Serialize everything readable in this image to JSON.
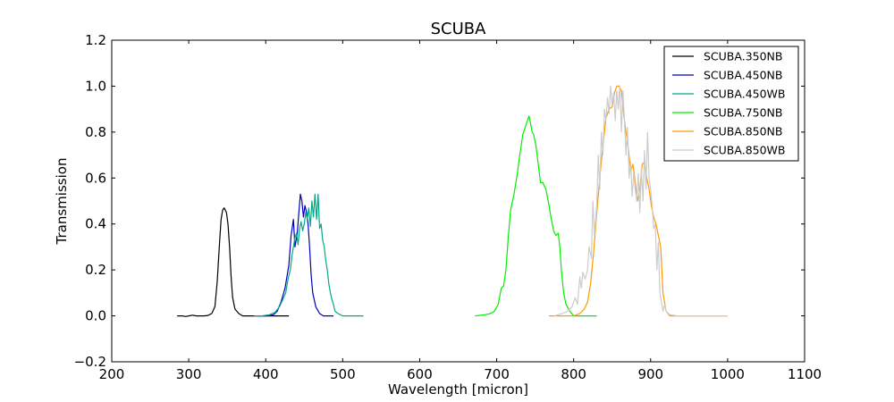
{
  "chart_data": {
    "type": "line",
    "title": "SCUBA",
    "xlabel": "Wavelength [micron]",
    "ylabel": "Transmission",
    "xlim": [
      200,
      1100
    ],
    "ylim": [
      -0.2,
      1.2
    ],
    "x_ticks": [
      200,
      300,
      400,
      500,
      600,
      700,
      800,
      900,
      1000,
      1100
    ],
    "y_ticks": [
      -0.2,
      0.0,
      0.2,
      0.4,
      0.6,
      0.8,
      1.0,
      1.2
    ],
    "x_tick_labels": [
      "200",
      "300",
      "400",
      "500",
      "600",
      "700",
      "800",
      "900",
      "1000",
      "1100"
    ],
    "y_tick_labels": [
      "−0.2",
      "0.0",
      "0.2",
      "0.4",
      "0.6",
      "0.8",
      "1.0",
      "1.2"
    ],
    "grid": false,
    "legend_position": "top-right",
    "series": [
      {
        "name": "SCUBA.350NB",
        "color": "#000000",
        "points": [
          [
            285,
            0.0
          ],
          [
            292,
            0.0
          ],
          [
            296,
            -0.003
          ],
          [
            300,
            0.0
          ],
          [
            305,
            0.003
          ],
          [
            310,
            0.0
          ],
          [
            315,
            0.0
          ],
          [
            320,
            0.0
          ],
          [
            325,
            0.002
          ],
          [
            330,
            0.01
          ],
          [
            334,
            0.04
          ],
          [
            337,
            0.15
          ],
          [
            340,
            0.32
          ],
          [
            342,
            0.42
          ],
          [
            344,
            0.46
          ],
          [
            346,
            0.47
          ],
          [
            349,
            0.45
          ],
          [
            351,
            0.4
          ],
          [
            353,
            0.3
          ],
          [
            355,
            0.17
          ],
          [
            357,
            0.08
          ],
          [
            360,
            0.03
          ],
          [
            365,
            0.01
          ],
          [
            370,
            0.0
          ],
          [
            380,
            0.0
          ],
          [
            400,
            0.0
          ],
          [
            420,
            0.0
          ],
          [
            430,
            0.0
          ]
        ]
      },
      {
        "name": "SCUBA.450NB",
        "color": "#0000bb",
        "points": [
          [
            388,
            0.0
          ],
          [
            400,
            0.0
          ],
          [
            410,
            0.005
          ],
          [
            415,
            0.02
          ],
          [
            420,
            0.06
          ],
          [
            425,
            0.12
          ],
          [
            430,
            0.22
          ],
          [
            433,
            0.35
          ],
          [
            436,
            0.42
          ],
          [
            438,
            0.3
          ],
          [
            441,
            0.36
          ],
          [
            443,
            0.45
          ],
          [
            445,
            0.53
          ],
          [
            447,
            0.5
          ],
          [
            449,
            0.43
          ],
          [
            451,
            0.48
          ],
          [
            453,
            0.45
          ],
          [
            455,
            0.4
          ],
          [
            457,
            0.3
          ],
          [
            459,
            0.18
          ],
          [
            461,
            0.1
          ],
          [
            465,
            0.04
          ],
          [
            470,
            0.01
          ],
          [
            475,
            0.0
          ],
          [
            488,
            0.0
          ]
        ]
      },
      {
        "name": "SCUBA.450WB",
        "color": "#00aa88",
        "points": [
          [
            385,
            0.0
          ],
          [
            395,
            0.0
          ],
          [
            405,
            0.005
          ],
          [
            412,
            0.015
          ],
          [
            418,
            0.04
          ],
          [
            422,
            0.07
          ],
          [
            426,
            0.1
          ],
          [
            429,
            0.16
          ],
          [
            432,
            0.2
          ],
          [
            434,
            0.26
          ],
          [
            436,
            0.3
          ],
          [
            438,
            0.34
          ],
          [
            440,
            0.36
          ],
          [
            442,
            0.31
          ],
          [
            444,
            0.38
          ],
          [
            446,
            0.41
          ],
          [
            448,
            0.37
          ],
          [
            450,
            0.4
          ],
          [
            452,
            0.45
          ],
          [
            454,
            0.42
          ],
          [
            456,
            0.47
          ],
          [
            458,
            0.39
          ],
          [
            460,
            0.5
          ],
          [
            462,
            0.43
          ],
          [
            464,
            0.53
          ],
          [
            466,
            0.42
          ],
          [
            468,
            0.53
          ],
          [
            470,
            0.38
          ],
          [
            472,
            0.4
          ],
          [
            474,
            0.33
          ],
          [
            476,
            0.3
          ],
          [
            478,
            0.24
          ],
          [
            480,
            0.2
          ],
          [
            482,
            0.14
          ],
          [
            484,
            0.1
          ],
          [
            486,
            0.07
          ],
          [
            488,
            0.05
          ],
          [
            490,
            0.02
          ],
          [
            494,
            0.01
          ],
          [
            500,
            0.0
          ],
          [
            515,
            0.0
          ],
          [
            527,
            0.0
          ]
        ]
      },
      {
        "name": "SCUBA.750NB",
        "color": "#00ee00",
        "points": [
          [
            672,
            0.0
          ],
          [
            685,
            0.005
          ],
          [
            692,
            0.01
          ],
          [
            697,
            0.02
          ],
          [
            702,
            0.05
          ],
          [
            706,
            0.12
          ],
          [
            709,
            0.13
          ],
          [
            712,
            0.2
          ],
          [
            715,
            0.34
          ],
          [
            718,
            0.46
          ],
          [
            722,
            0.52
          ],
          [
            726,
            0.6
          ],
          [
            730,
            0.7
          ],
          [
            734,
            0.79
          ],
          [
            738,
            0.83
          ],
          [
            742,
            0.87
          ],
          [
            744,
            0.84
          ],
          [
            746,
            0.8
          ],
          [
            748,
            0.79
          ],
          [
            751,
            0.74
          ],
          [
            754,
            0.66
          ],
          [
            757,
            0.58
          ],
          [
            760,
            0.58
          ],
          [
            764,
            0.55
          ],
          [
            768,
            0.48
          ],
          [
            771,
            0.42
          ],
          [
            774,
            0.37
          ],
          [
            777,
            0.35
          ],
          [
            780,
            0.36
          ],
          [
            782,
            0.3
          ],
          [
            784,
            0.2
          ],
          [
            787,
            0.1
          ],
          [
            790,
            0.05
          ],
          [
            795,
            0.02
          ],
          [
            800,
            0.0
          ],
          [
            815,
            0.0
          ],
          [
            830,
            0.0
          ]
        ]
      },
      {
        "name": "SCUBA.850NB",
        "color": "#ff9900",
        "points": [
          [
            768,
            0.0
          ],
          [
            790,
            0.0
          ],
          [
            800,
            0.0
          ],
          [
            808,
            0.01
          ],
          [
            814,
            0.03
          ],
          [
            818,
            0.06
          ],
          [
            822,
            0.14
          ],
          [
            826,
            0.28
          ],
          [
            830,
            0.45
          ],
          [
            834,
            0.6
          ],
          [
            838,
            0.74
          ],
          [
            842,
            0.86
          ],
          [
            846,
            0.9
          ],
          [
            850,
            0.91
          ],
          [
            853,
            0.97
          ],
          [
            856,
            1.0
          ],
          [
            859,
            1.0
          ],
          [
            862,
            0.98
          ],
          [
            865,
            0.88
          ],
          [
            868,
            0.8
          ],
          [
            871,
            0.73
          ],
          [
            874,
            0.63
          ],
          [
            877,
            0.66
          ],
          [
            880,
            0.58
          ],
          [
            883,
            0.5
          ],
          [
            886,
            0.55
          ],
          [
            889,
            0.66
          ],
          [
            892,
            0.67
          ],
          [
            895,
            0.6
          ],
          [
            898,
            0.55
          ],
          [
            901,
            0.48
          ],
          [
            904,
            0.43
          ],
          [
            907,
            0.4
          ],
          [
            910,
            0.35
          ],
          [
            913,
            0.3
          ],
          [
            916,
            0.1
          ],
          [
            920,
            0.02
          ],
          [
            925,
            0.0
          ],
          [
            940,
            0.0
          ],
          [
            960,
            0.0
          ],
          [
            980,
            0.0
          ],
          [
            1000,
            0.0
          ]
        ]
      },
      {
        "name": "SCUBA.850WB",
        "color": "#cccccc",
        "points": [
          [
            775,
            0.0
          ],
          [
            785,
            0.01
          ],
          [
            792,
            0.02
          ],
          [
            798,
            0.04
          ],
          [
            802,
            0.08
          ],
          [
            805,
            0.05
          ],
          [
            808,
            0.17
          ],
          [
            810,
            0.12
          ],
          [
            812,
            0.19
          ],
          [
            815,
            0.16
          ],
          [
            818,
            0.2
          ],
          [
            820,
            0.3
          ],
          [
            823,
            0.25
          ],
          [
            825,
            0.5
          ],
          [
            827,
            0.35
          ],
          [
            830,
            0.48
          ],
          [
            832,
            0.7
          ],
          [
            834,
            0.55
          ],
          [
            836,
            0.8
          ],
          [
            838,
            0.7
          ],
          [
            840,
            0.9
          ],
          [
            842,
            0.85
          ],
          [
            844,
            0.95
          ],
          [
            846,
            0.88
          ],
          [
            848,
            1.0
          ],
          [
            850,
            0.92
          ],
          [
            852,
            0.97
          ],
          [
            854,
            0.85
          ],
          [
            856,
            0.98
          ],
          [
            858,
            0.9
          ],
          [
            860,
            1.0
          ],
          [
            862,
            0.8
          ],
          [
            864,
            0.98
          ],
          [
            866,
            0.85
          ],
          [
            868,
            0.7
          ],
          [
            870,
            0.82
          ],
          [
            872,
            0.6
          ],
          [
            874,
            0.67
          ],
          [
            876,
            0.52
          ],
          [
            878,
            0.62
          ],
          [
            880,
            0.55
          ],
          [
            882,
            0.5
          ],
          [
            884,
            0.62
          ],
          [
            886,
            0.45
          ],
          [
            888,
            0.64
          ],
          [
            890,
            0.5
          ],
          [
            892,
            0.72
          ],
          [
            894,
            0.55
          ],
          [
            896,
            0.8
          ],
          [
            898,
            0.6
          ],
          [
            900,
            0.55
          ],
          [
            902,
            0.48
          ],
          [
            904,
            0.38
          ],
          [
            906,
            0.4
          ],
          [
            908,
            0.2
          ],
          [
            910,
            0.32
          ],
          [
            912,
            0.1
          ],
          [
            914,
            0.06
          ],
          [
            916,
            0.02
          ],
          [
            918,
            0.05
          ],
          [
            920,
            0.02
          ],
          [
            925,
            0.005
          ],
          [
            935,
            0.0
          ],
          [
            960,
            0.0
          ],
          [
            980,
            0.0
          ],
          [
            1000,
            0.0
          ]
        ]
      }
    ]
  }
}
